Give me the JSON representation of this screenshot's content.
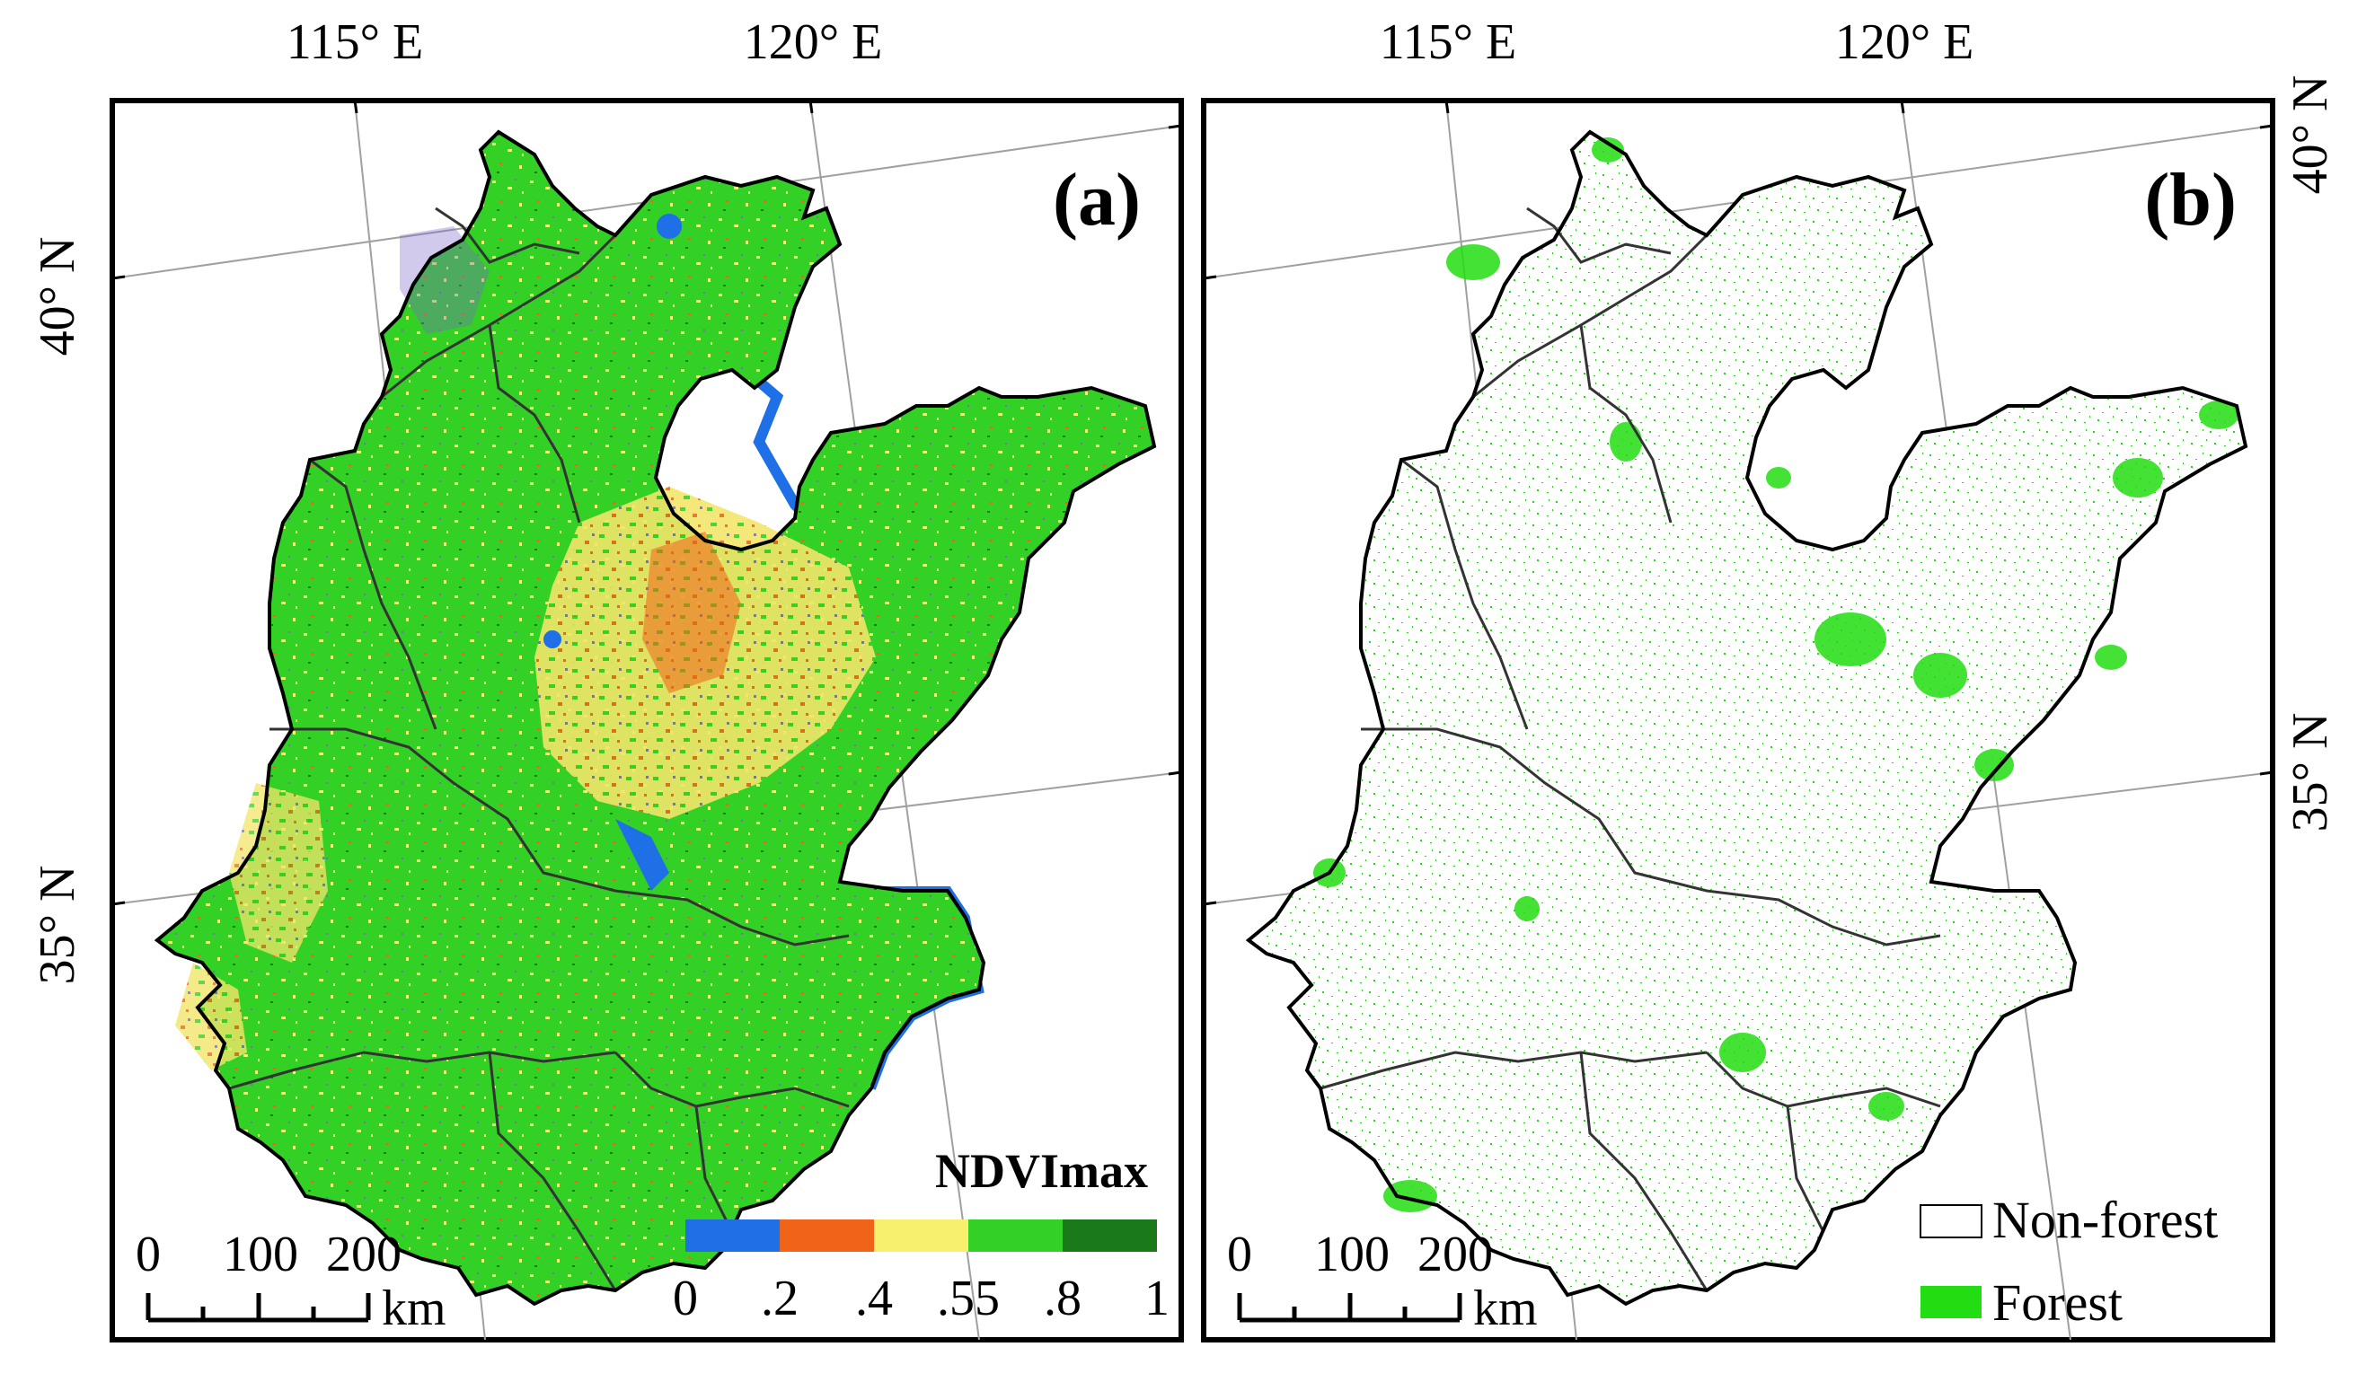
{
  "panels": [
    {
      "id": "a",
      "label": "(a)",
      "lon_labels": [
        "115° E",
        "120° E"
      ],
      "lat_labels": [
        "40° N",
        "35° N"
      ],
      "scale_ticks": [
        "0",
        "100",
        "200"
      ],
      "scale_unit": "km",
      "legend": {
        "title": "NDVImax",
        "classes": [
          {
            "from": "0",
            "to": ".2",
            "color": "#1f6fe6"
          },
          {
            "from": ".2",
            "to": ".4",
            "color": "#f0641a"
          },
          {
            "from": ".4",
            "to": ".55",
            "color": "#f7f06e"
          },
          {
            "from": ".55",
            "to": ".8",
            "color": "#33d026"
          },
          {
            "from": ".8",
            "to": "1",
            "color": "#1a7a1a"
          }
        ],
        "tick_labels": [
          "0",
          ".2",
          ".4",
          ".55",
          ".8",
          "1"
        ]
      }
    },
    {
      "id": "b",
      "label": "(b)",
      "lon_labels": [
        "115° E",
        "120° E"
      ],
      "lat_labels": [
        "40° N",
        "35° N"
      ],
      "scale_ticks": [
        "0",
        "100",
        "200"
      ],
      "scale_unit": "km",
      "legend": {
        "items": [
          {
            "label": "Non-forest",
            "color": "#ffffff"
          },
          {
            "label": "Forest",
            "color": "#22dd11"
          }
        ]
      }
    }
  ],
  "colors": {
    "frame": "#000000",
    "graticule": "#999999",
    "boundary": "#333333",
    "coast_water": "#1f6fe6"
  }
}
